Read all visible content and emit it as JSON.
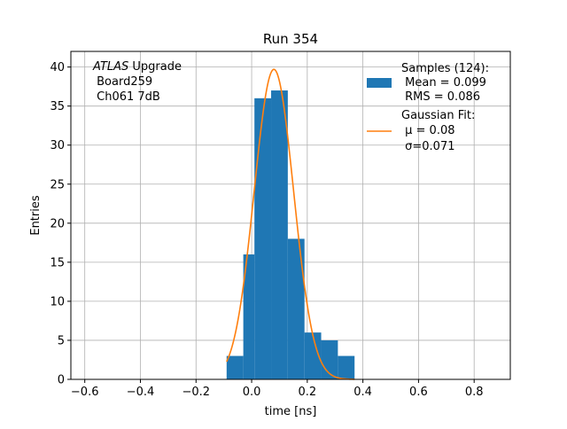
{
  "chart_data": {
    "type": "bar",
    "title": "Run 354",
    "xlabel": "time [ns]",
    "ylabel": "Entries",
    "xlim": [
      -0.65,
      0.93
    ],
    "ylim": [
      0,
      42
    ],
    "grid": true,
    "x_ticks": [
      -0.6,
      -0.4,
      -0.2,
      0.0,
      0.2,
      0.4,
      0.6,
      0.8
    ],
    "x_tick_labels": [
      "−0.6",
      "−0.4",
      "−0.2",
      "0.0",
      "0.2",
      "0.4",
      "0.6",
      "0.8"
    ],
    "y_ticks": [
      0,
      5,
      10,
      15,
      20,
      25,
      30,
      35,
      40
    ],
    "y_tick_labels": [
      "0",
      "5",
      "10",
      "15",
      "20",
      "25",
      "30",
      "35",
      "40"
    ],
    "annotation": {
      "atlas": "ATLAS",
      "line1_rest": " Upgrade",
      "line2": " Board259",
      "line3": " Ch061 7dB"
    },
    "legend": {
      "placement": "top-right",
      "histogram": {
        "color": "#1f77b4",
        "lines": [
          "Samples (124):",
          " Mean = 0.099",
          " RMS = 0.086"
        ]
      },
      "fit": {
        "color": "#ff7f0e",
        "lines": [
          "Gaussian Fit:",
          " μ = 0.08",
          " σ=0.071"
        ]
      }
    },
    "histogram": {
      "name": "Samples (124)",
      "color": "#1f77b4",
      "bins": [
        {
          "x0": -0.09,
          "x1": -0.03,
          "count": 3
        },
        {
          "x0": -0.03,
          "x1": 0.01,
          "count": 16
        },
        {
          "x0": 0.01,
          "x1": 0.07,
          "count": 36
        },
        {
          "x0": 0.07,
          "x1": 0.13,
          "count": 37
        },
        {
          "x0": 0.13,
          "x1": 0.19,
          "count": 18
        },
        {
          "x0": 0.19,
          "x1": 0.25,
          "count": 6
        },
        {
          "x0": 0.25,
          "x1": 0.31,
          "count": 5
        },
        {
          "x0": 0.31,
          "x1": 0.37,
          "count": 3
        }
      ]
    },
    "fit": {
      "name": "Gaussian Fit",
      "color": "#ff7f0e",
      "amplitude": 39.7,
      "mu": 0.08,
      "sigma": 0.071,
      "x_range": [
        -0.09,
        0.37
      ]
    }
  }
}
